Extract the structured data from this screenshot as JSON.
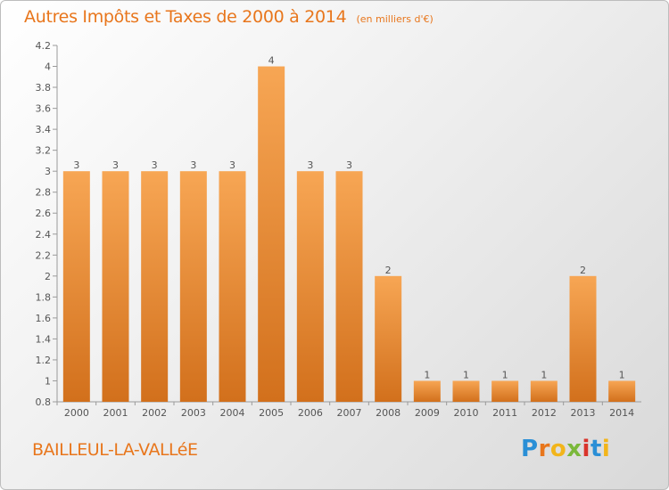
{
  "colors": {
    "accent": "#e8761c",
    "bar_light": "#f7a654",
    "bar_dark": "#d2701c"
  },
  "chart_data": {
    "type": "bar",
    "title": "Autres Impôts et Taxes de 2000 à 2014",
    "subtitle": "(en milliers d'€)",
    "categories": [
      "2000",
      "2001",
      "2002",
      "2003",
      "2004",
      "2005",
      "2006",
      "2007",
      "2008",
      "2009",
      "2010",
      "2011",
      "2012",
      "2013",
      "2014"
    ],
    "values": [
      3,
      3,
      3,
      3,
      3,
      4,
      3,
      3,
      2,
      1,
      1,
      1,
      1,
      2,
      1
    ],
    "data_labels": [
      "3",
      "3",
      "3",
      "3",
      "3",
      "4",
      "3",
      "3",
      "2",
      "1",
      "1",
      "1",
      "1",
      "2",
      "1"
    ],
    "ylim": [
      0.8,
      4.2
    ],
    "yticks": [
      0.8,
      1,
      1.2,
      1.4,
      1.6,
      1.8,
      2,
      2.2,
      2.4,
      2.6,
      2.8,
      3,
      3.2,
      3.4,
      3.6,
      3.8,
      4,
      4.2
    ],
    "ytick_labels": [
      "0.8",
      "1",
      "1.2",
      "1.4",
      "1.6",
      "1.8",
      "2",
      "2.2",
      "2.4",
      "2.6",
      "2.8",
      "3",
      "3.2",
      "3.4",
      "3.6",
      "3.8",
      "4",
      "4.2"
    ],
    "grid": false
  },
  "footer": {
    "location": "BAILLEUL-LA-VALLéE",
    "brand": "Proxiti"
  }
}
